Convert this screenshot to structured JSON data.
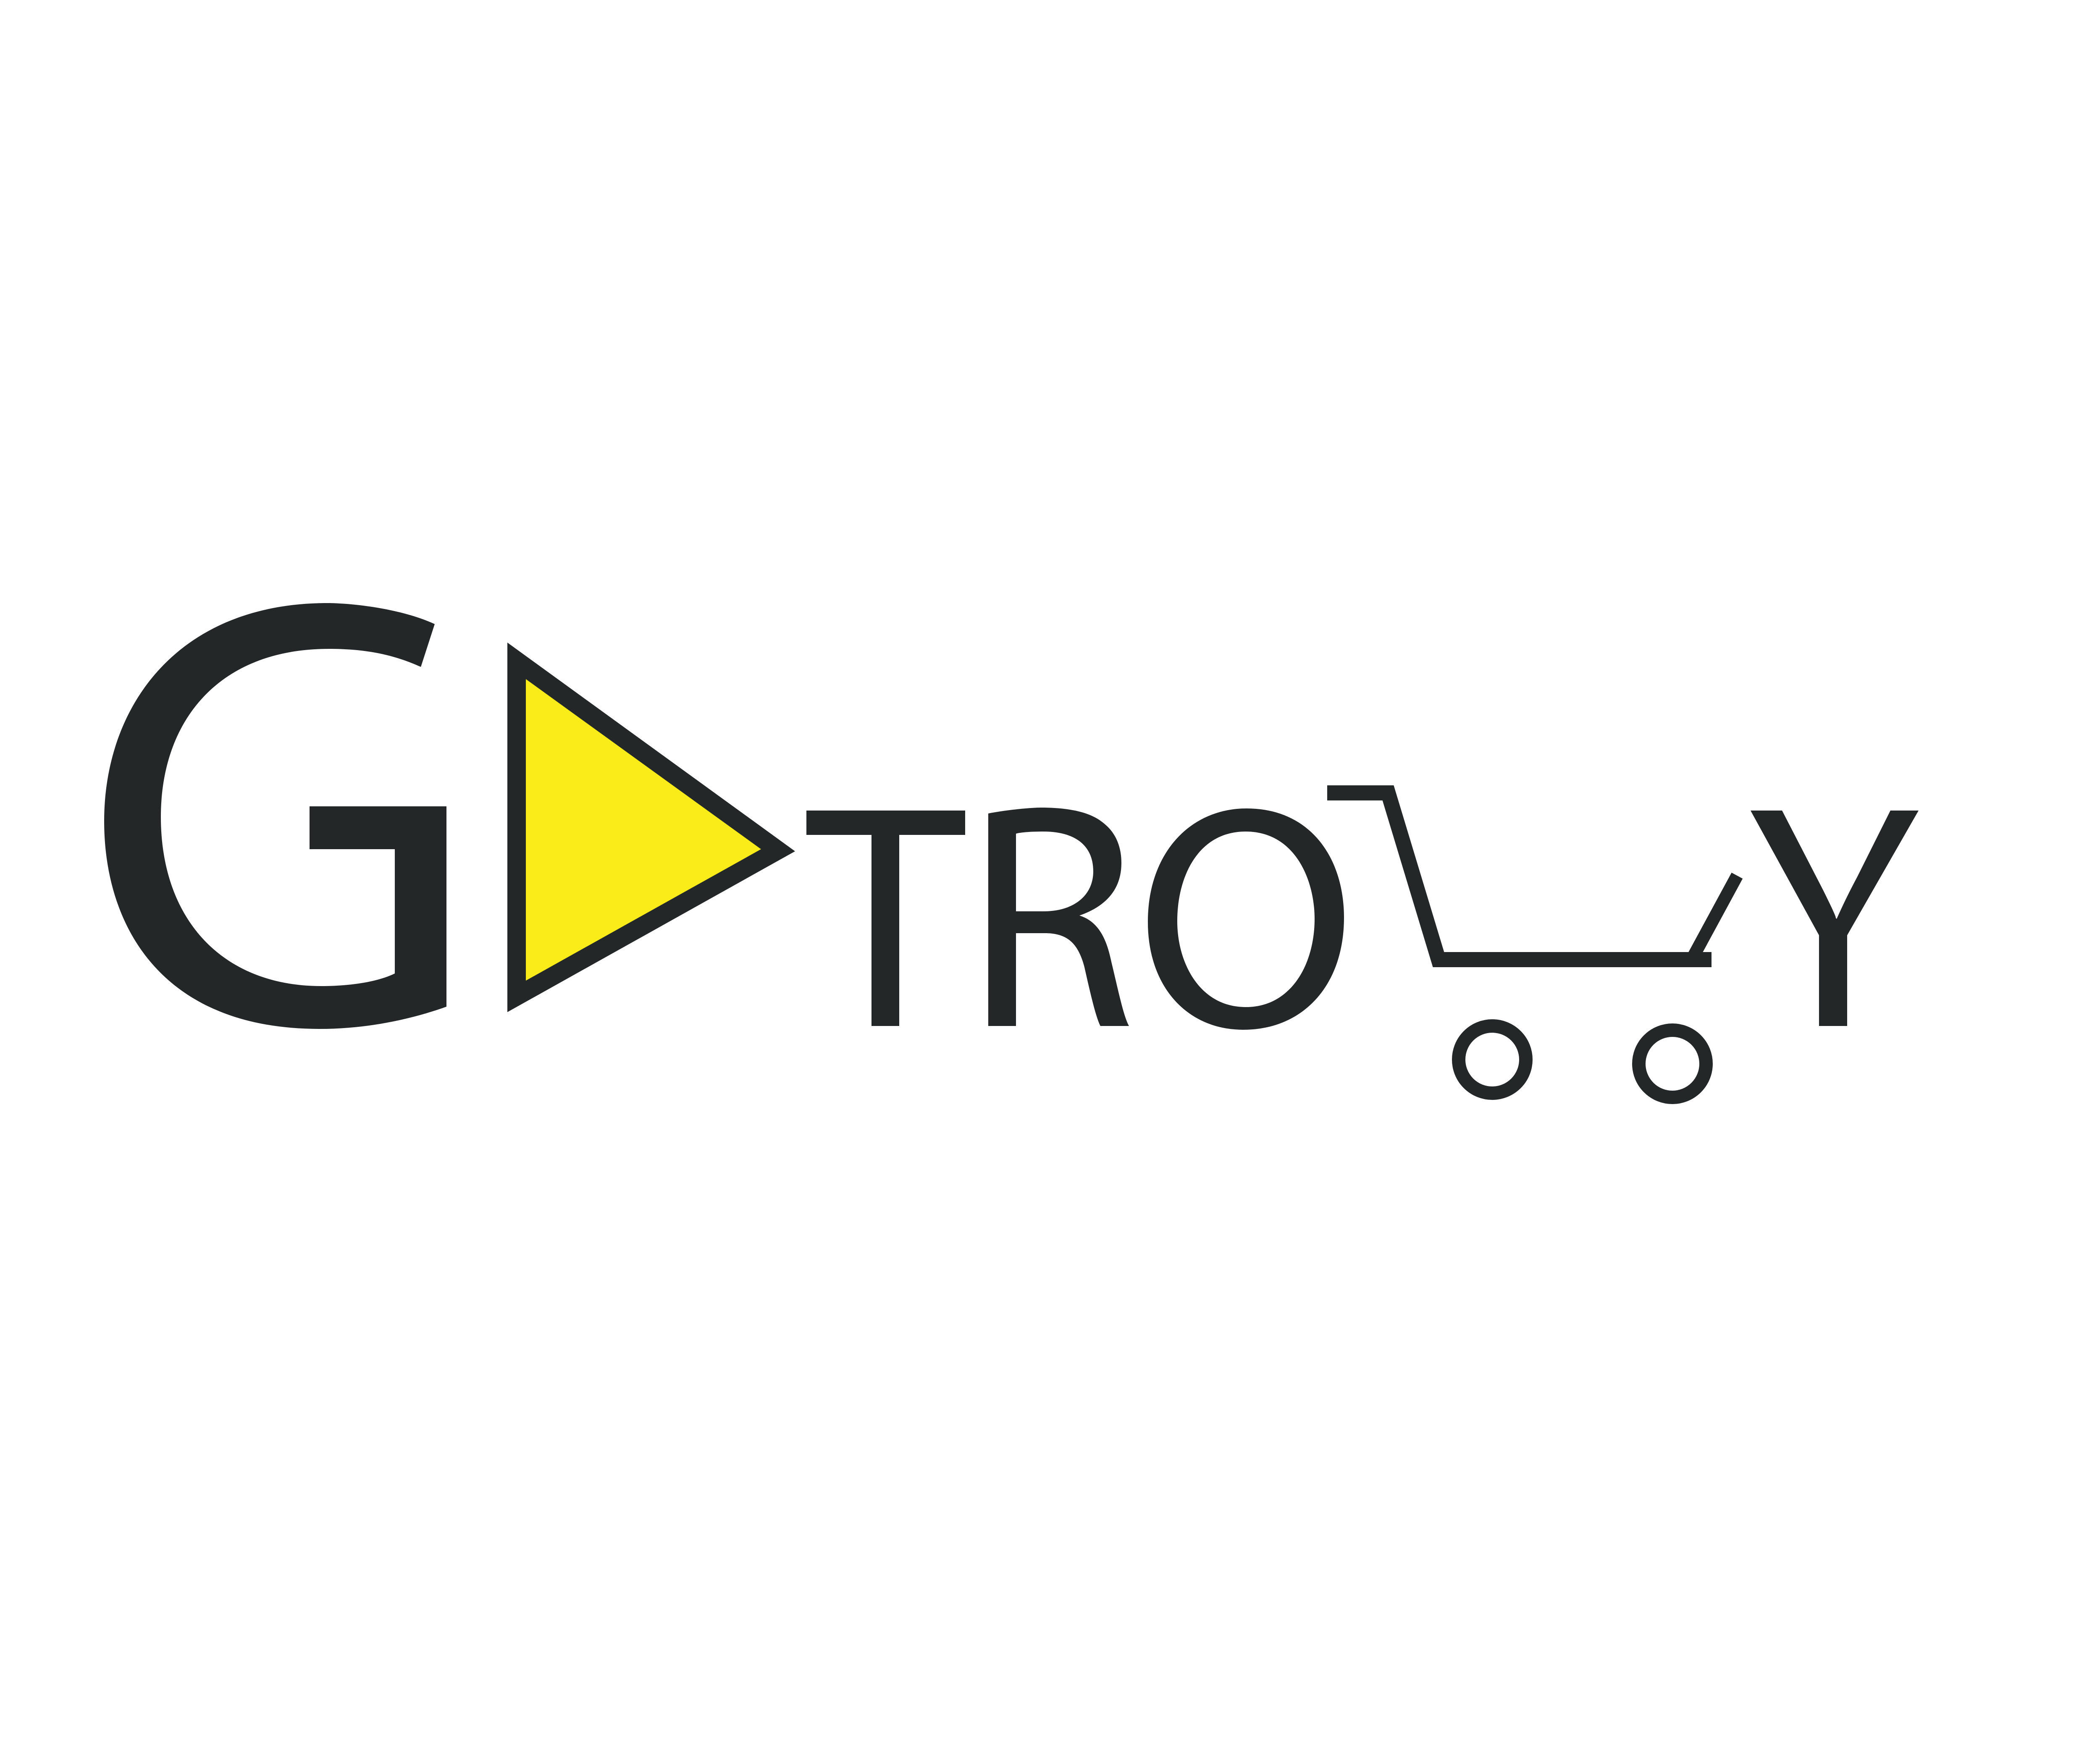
{
  "logo": {
    "text": "GOTROLLY",
    "letters": {
      "g": "G",
      "t": "T",
      "r": "R",
      "o": "O",
      "y": "Y"
    },
    "colors": {
      "ink": "#242728",
      "play_fill": "#f9ec18",
      "background": "#ffffff"
    },
    "icons": {
      "play": "play-triangle-icon",
      "cart": "shopping-cart-icon"
    }
  }
}
